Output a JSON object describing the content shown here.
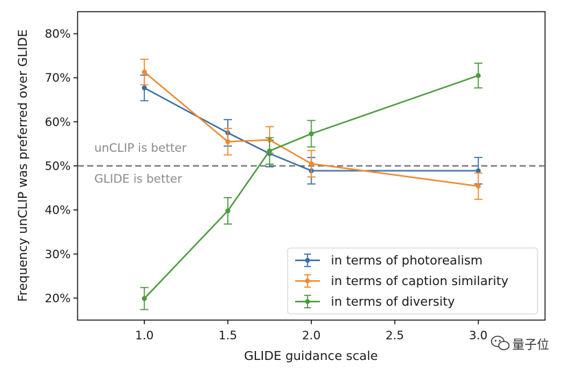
{
  "chart_data": {
    "type": "line",
    "xlabel": "GLIDE guidance scale",
    "ylabel": "Frequency unCLIP was preferred over GLIDE",
    "xlim": [
      0.6,
      3.4
    ],
    "ylim": [
      15,
      85
    ],
    "xticks": [
      1.0,
      1.5,
      2.0,
      2.5,
      3.0
    ],
    "xtick_labels": [
      "1.0",
      "1.5",
      "2.0",
      "2.5",
      "3.0"
    ],
    "yticks": [
      20,
      30,
      40,
      50,
      60,
      70,
      80
    ],
    "ytick_labels": [
      "20%",
      "30%",
      "40%",
      "50%",
      "60%",
      "70%",
      "80%"
    ],
    "grid": false,
    "legend_position": "lower-right",
    "reference_line": {
      "y": 50,
      "style": "dashed"
    },
    "annotations": [
      {
        "text": "unCLIP is better",
        "x": 0.7,
        "y": 53.2
      },
      {
        "text": "GLIDE is better",
        "x": 0.7,
        "y": 46.2
      }
    ],
    "series": [
      {
        "name": "in terms of photorealism",
        "color": "#3a6ea5",
        "x": [
          1.0,
          1.5,
          1.75,
          2.0,
          3.0
        ],
        "y": [
          67.7,
          57.5,
          52.8,
          48.9,
          48.9
        ],
        "err": [
          2.9,
          3.0,
          3.0,
          3.0,
          3.0
        ]
      },
      {
        "name": "in terms of caption similarity",
        "color": "#f0892f",
        "x": [
          1.0,
          1.5,
          1.75,
          2.0,
          3.0
        ],
        "y": [
          71.3,
          55.5,
          55.9,
          50.5,
          45.4
        ],
        "err": [
          2.9,
          3.0,
          3.0,
          3.0,
          3.0
        ]
      },
      {
        "name": "in terms of diversity",
        "color": "#4b9a3f",
        "x": [
          1.0,
          1.5,
          1.75,
          2.0,
          3.0
        ],
        "y": [
          19.9,
          39.8,
          53.4,
          57.3,
          70.5
        ],
        "err": [
          2.5,
          3.0,
          3.0,
          3.0,
          2.8
        ]
      }
    ]
  },
  "watermark": {
    "icon": "wechat-icon",
    "text": "量子位"
  }
}
